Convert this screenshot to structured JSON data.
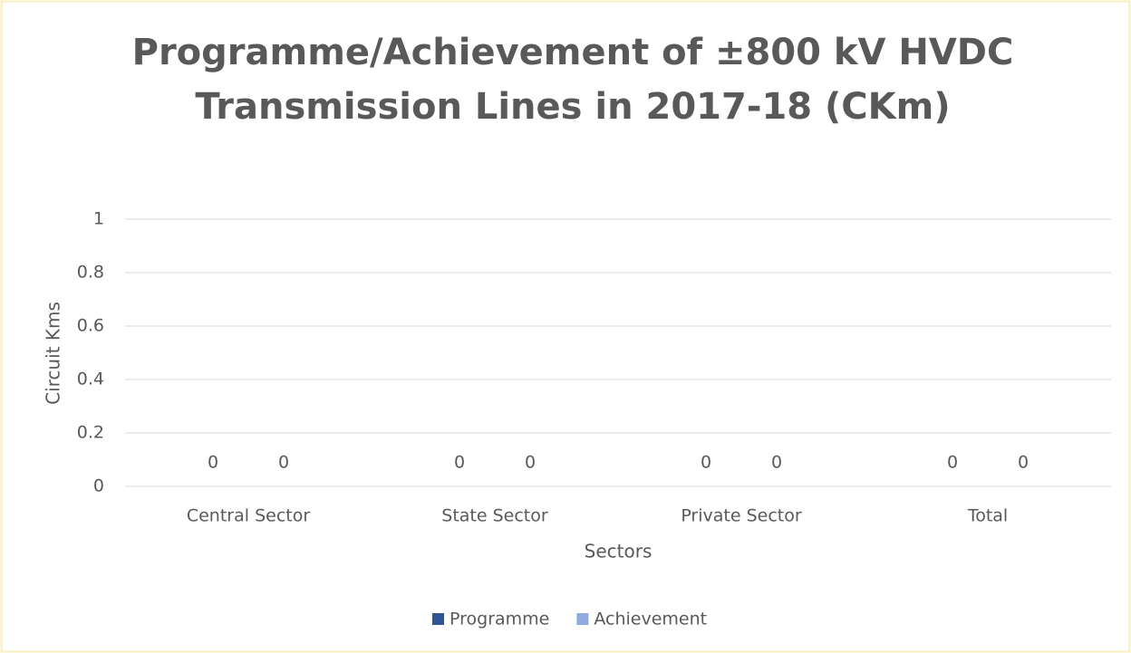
{
  "chart_data": {
    "type": "bar",
    "title": [
      "Programme/Achievement of ±800 kV HVDC",
      "Transmission Lines in 2017-18 (CKm)"
    ],
    "x_label": "Sectors",
    "y_label": "Circuit Kms",
    "categories": [
      "Central Sector",
      "State Sector",
      "Private Sector",
      "Total"
    ],
    "series": [
      {
        "name": "Programme",
        "color": "#2f5597",
        "values": [
          0,
          0,
          0,
          0
        ]
      },
      {
        "name": "Achievement",
        "color": "#8faadc",
        "values": [
          0,
          0,
          0,
          0
        ]
      }
    ],
    "ylim": [
      0,
      1
    ],
    "yticks": [
      0,
      0.2,
      0.4,
      0.6,
      0.8,
      1
    ],
    "grid": true,
    "legend": "bottom"
  }
}
